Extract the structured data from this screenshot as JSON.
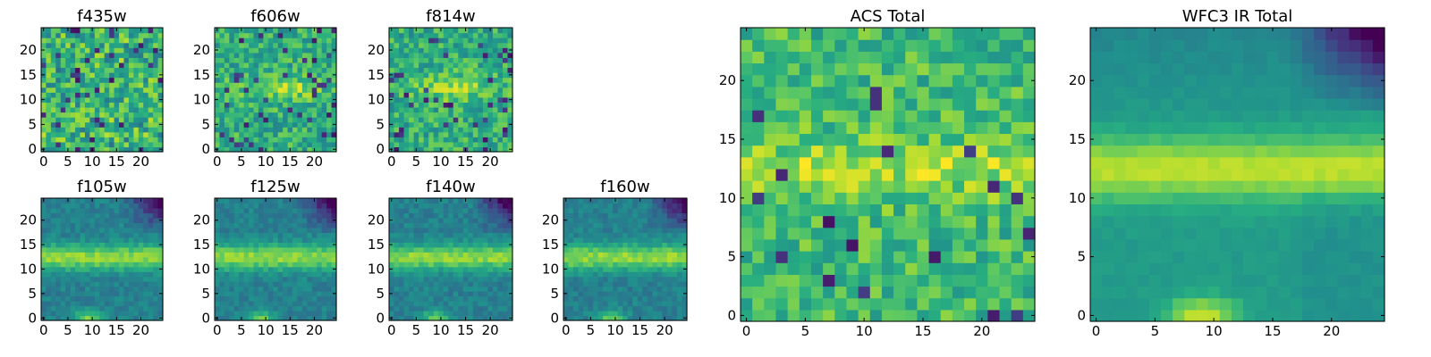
{
  "chart_data": [
    {
      "type": "heatmap",
      "title": "f435w",
      "xticks": [
        "0",
        "5",
        "10",
        "15",
        "20"
      ],
      "yticks": [
        "0",
        "5",
        "10",
        "15",
        "20"
      ],
      "xlim": [
        0,
        25
      ],
      "ylim": [
        0,
        25
      ],
      "grid_size": 25,
      "colormap": "viridis",
      "pattern": "noise",
      "seed": 11
    },
    {
      "type": "heatmap",
      "title": "f606w",
      "xticks": [
        "0",
        "5",
        "10",
        "15",
        "20"
      ],
      "yticks": [
        "0",
        "5",
        "10",
        "15",
        "20"
      ],
      "xlim": [
        0,
        25
      ],
      "ylim": [
        0,
        25
      ],
      "grid_size": 25,
      "colormap": "viridis",
      "pattern": "optical",
      "seed": 23
    },
    {
      "type": "heatmap",
      "title": "f814w",
      "xticks": [
        "0",
        "5",
        "10",
        "15",
        "20"
      ],
      "yticks": [
        "0",
        "5",
        "10",
        "15",
        "20"
      ],
      "xlim": [
        0,
        25
      ],
      "ylim": [
        0,
        25
      ],
      "grid_size": 25,
      "colormap": "viridis",
      "pattern": "optical",
      "seed": 37
    },
    {
      "type": "heatmap",
      "title": "f105w",
      "xticks": [
        "0",
        "5",
        "10",
        "15",
        "20"
      ],
      "yticks": [
        "0",
        "5",
        "10",
        "15",
        "20"
      ],
      "xlim": [
        0,
        25
      ],
      "ylim": [
        0,
        25
      ],
      "grid_size": 25,
      "colormap": "viridis",
      "pattern": "infrared",
      "seed": 41
    },
    {
      "type": "heatmap",
      "title": "f125w",
      "xticks": [
        "0",
        "5",
        "10",
        "15",
        "20"
      ],
      "yticks": [
        "0",
        "5",
        "10",
        "15",
        "20"
      ],
      "xlim": [
        0,
        25
      ],
      "ylim": [
        0,
        25
      ],
      "grid_size": 25,
      "colormap": "viridis",
      "pattern": "infrared",
      "seed": 53
    },
    {
      "type": "heatmap",
      "title": "f140w",
      "xticks": [
        "0",
        "5",
        "10",
        "15",
        "20"
      ],
      "yticks": [
        "0",
        "5",
        "10",
        "15",
        "20"
      ],
      "xlim": [
        0,
        25
      ],
      "ylim": [
        0,
        25
      ],
      "grid_size": 25,
      "colormap": "viridis",
      "pattern": "infrared",
      "seed": 67
    },
    {
      "type": "heatmap",
      "title": "f160w",
      "xticks": [
        "0",
        "5",
        "10",
        "15",
        "20"
      ],
      "yticks": [
        "0",
        "5",
        "10",
        "15",
        "20"
      ],
      "xlim": [
        0,
        25
      ],
      "ylim": [
        0,
        25
      ],
      "grid_size": 25,
      "colormap": "viridis",
      "pattern": "infrared",
      "seed": 79
    },
    {
      "type": "heatmap",
      "title": "ACS Total",
      "xticks": [
        "0",
        "5",
        "10",
        "15",
        "20"
      ],
      "yticks": [
        "0",
        "5",
        "10",
        "15",
        "20"
      ],
      "xlim": [
        0,
        25
      ],
      "ylim": [
        0,
        25
      ],
      "grid_size": 25,
      "colormap": "viridis",
      "pattern": "acs",
      "seed": 83
    },
    {
      "type": "heatmap",
      "title": "WFC3 IR Total",
      "xticks": [
        "0",
        "5",
        "10",
        "15",
        "20"
      ],
      "yticks": [
        "0",
        "5",
        "10",
        "15",
        "20"
      ],
      "xlim": [
        0,
        25
      ],
      "ylim": [
        0,
        25
      ],
      "grid_size": 25,
      "colormap": "viridis",
      "pattern": "ir_total",
      "seed": 97
    }
  ]
}
